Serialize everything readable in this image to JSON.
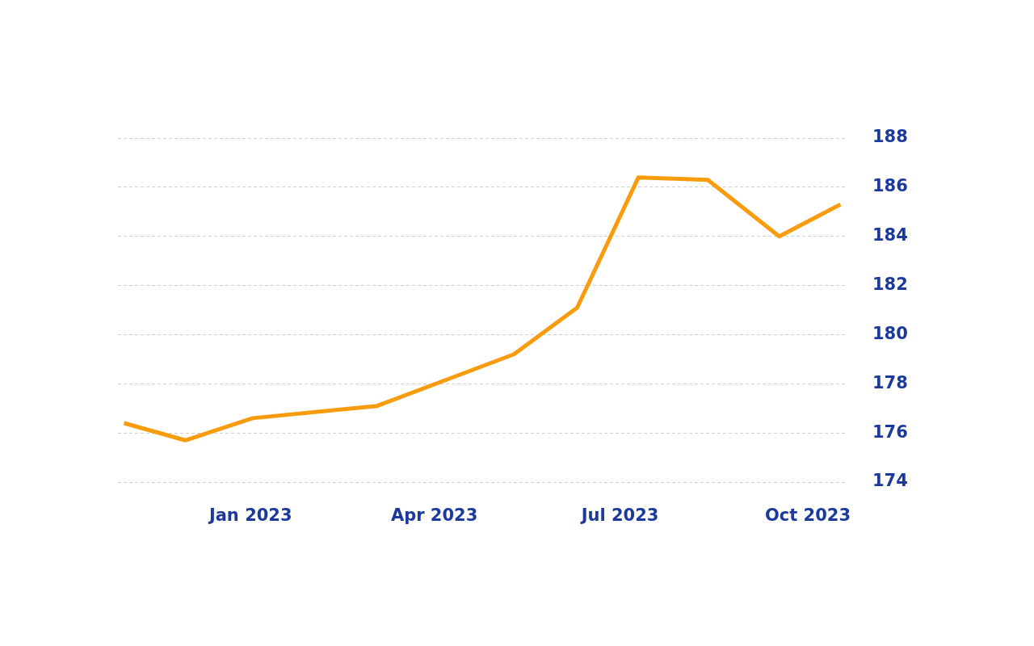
{
  "chart_data": {
    "type": "line",
    "x": [
      "2022-10-31",
      "2022-11-30",
      "2023-01-02",
      "2023-03-04",
      "2023-05-10",
      "2023-06-10",
      "2023-07-10",
      "2023-08-13",
      "2023-09-17",
      "2023-10-17"
    ],
    "series": [
      {
        "color": "#f89c0e",
        "values": [
          176.4,
          175.7,
          176.6,
          177.1,
          179.2,
          181.1,
          186.4,
          186.3,
          184.0,
          185.3
        ]
      }
    ],
    "xlim": [
      "2022-10-28",
      "2023-10-20"
    ],
    "xticks": [
      {
        "value": "2023-01-01",
        "label": "Jan 2023"
      },
      {
        "value": "2023-04-01",
        "label": "Apr 2023"
      },
      {
        "value": "2023-07-01",
        "label": "Jul 2023"
      },
      {
        "value": "2023-10-01",
        "label": "Oct 2023"
      }
    ],
    "ylim": [
      174,
      188
    ],
    "yticks": [
      174,
      176,
      178,
      180,
      182,
      184,
      186,
      188
    ],
    "grid": "y",
    "marker": "none",
    "line_style": "solid"
  }
}
